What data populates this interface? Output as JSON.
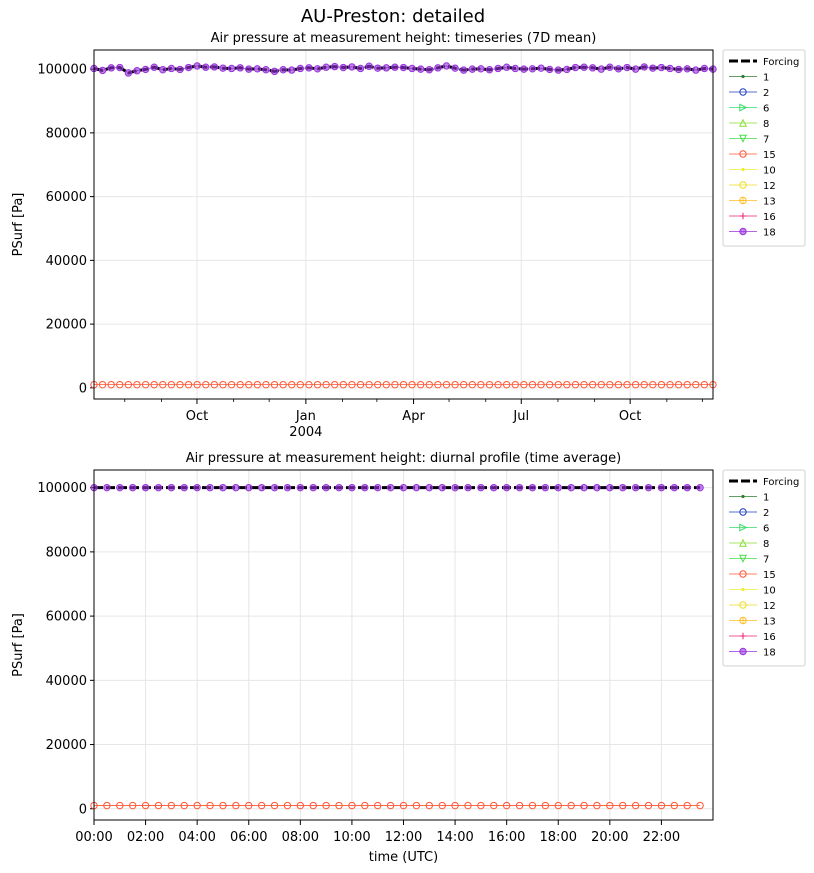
{
  "figure": {
    "suptitle": "AU-Preston: detailed"
  },
  "chart_data": [
    {
      "type": "line",
      "title": "Air pressure at measurement height: timeseries (7D mean)",
      "xlabel": "",
      "ylabel": "PSurf [Pa]",
      "x_ticks": [
        "Oct",
        "Jan",
        "Apr",
        "Jul",
        "Oct"
      ],
      "x_tick_dates": [
        "2003-10-01",
        "2004-01-01",
        "2004-04-01",
        "2004-07-01",
        "2004-10-01"
      ],
      "x_year_label": "2004",
      "xlim": [
        "2003-07-06",
        "2004-12-10"
      ],
      "y_ticks": [
        0,
        20000,
        40000,
        60000,
        80000,
        100000
      ],
      "ylim": [
        -3500,
        106000
      ],
      "grid": true,
      "legend_position": "outside-right",
      "series": [
        {
          "name": "Forcing",
          "color": "#000000",
          "marker": "none",
          "style": "dashed"
        },
        {
          "name": "1",
          "color": "#2e7d32",
          "marker": "point"
        },
        {
          "name": "2",
          "color": "#1f3fbf",
          "marker": "circle"
        },
        {
          "name": "6",
          "color": "#33dd66",
          "marker": "triangle-right"
        },
        {
          "name": "8",
          "color": "#88dd33",
          "marker": "triangle-up"
        },
        {
          "name": "7",
          "color": "#44dd44",
          "marker": "triangle-down"
        },
        {
          "name": "15",
          "color": "#ff5533",
          "marker": "circle",
          "values_approx": 1000
        },
        {
          "name": "10",
          "color": "#eeee33",
          "marker": "point"
        },
        {
          "name": "12",
          "color": "#eedd22",
          "marker": "circle"
        },
        {
          "name": "13",
          "color": "#ffbb22",
          "marker": "circle-plus"
        },
        {
          "name": "16",
          "color": "#ee2277",
          "marker": "plus"
        },
        {
          "name": "18",
          "color": "#9933dd",
          "marker": "circle-filled"
        }
      ],
      "forcing_values": [
        100200,
        99600,
        100400,
        100500,
        98800,
        99500,
        99900,
        100600,
        99800,
        100200,
        99900,
        100500,
        101000,
        100600,
        100700,
        100300,
        100200,
        100400,
        100000,
        100100,
        99800,
        99300,
        99800,
        99700,
        100200,
        100400,
        100100,
        100600,
        100800,
        100500,
        100700,
        100200,
        100900,
        100300,
        100400,
        100600,
        100500,
        100200,
        100000,
        99800,
        100400,
        101000,
        100300,
        99700,
        100000,
        100100,
        99800,
        100200,
        100600,
        100200,
        100000,
        100100,
        100300,
        99900,
        99700,
        99900,
        100500,
        100600,
        100400,
        100000,
        100600,
        100100,
        100500,
        100000,
        100700,
        100300,
        100500,
        100200,
        99900,
        100100,
        99700,
        100200,
        100000
      ],
      "series_15_value": 1000
    },
    {
      "type": "line",
      "title": "Air pressure at measurement height: diurnal profile (time average)",
      "xlabel": "time (UTC)",
      "ylabel": "PSurf [Pa]",
      "x_ticks": [
        "00:00",
        "02:00",
        "04:00",
        "06:00",
        "08:00",
        "10:00",
        "12:00",
        "14:00",
        "16:00",
        "18:00",
        "20:00",
        "22:00"
      ],
      "xlim": [
        0,
        24
      ],
      "y_ticks": [
        0,
        20000,
        40000,
        60000,
        80000,
        100000
      ],
      "ylim": [
        -3500,
        105500
      ],
      "grid": true,
      "legend_position": "outside-right",
      "series": [
        {
          "name": "Forcing",
          "color": "#000000",
          "marker": "none",
          "style": "dashed"
        },
        {
          "name": "1",
          "color": "#2e7d32",
          "marker": "point"
        },
        {
          "name": "2",
          "color": "#1f3fbf",
          "marker": "circle"
        },
        {
          "name": "6",
          "color": "#33dd66",
          "marker": "triangle-right"
        },
        {
          "name": "8",
          "color": "#88dd33",
          "marker": "triangle-up"
        },
        {
          "name": "7",
          "color": "#44dd44",
          "marker": "triangle-down"
        },
        {
          "name": "15",
          "color": "#ff5533",
          "marker": "circle"
        },
        {
          "name": "10",
          "color": "#eeee33",
          "marker": "point"
        },
        {
          "name": "12",
          "color": "#eedd22",
          "marker": "circle"
        },
        {
          "name": "13",
          "color": "#ffbb22",
          "marker": "circle-plus"
        },
        {
          "name": "16",
          "color": "#ee2277",
          "marker": "plus"
        },
        {
          "name": "18",
          "color": "#9933dd",
          "marker": "circle-filled"
        }
      ],
      "x_half_hours": 48,
      "main_value": 100000,
      "series_15_value": 1000
    }
  ]
}
